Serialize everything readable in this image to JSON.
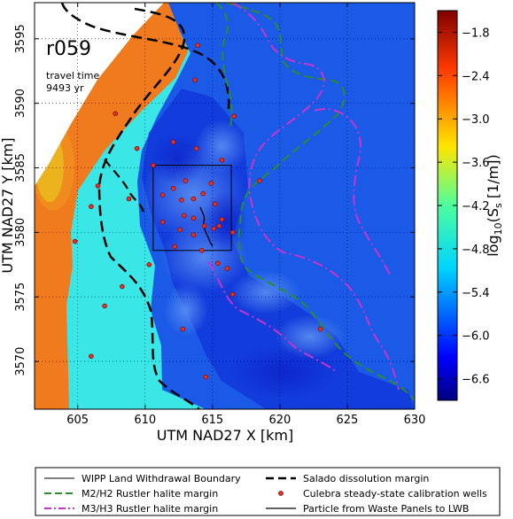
{
  "chart_data": {
    "type": "heatmap",
    "title": "",
    "xlabel": "UTM NAD27 X [km]",
    "ylabel": "UTM NAD27 Y [km]",
    "xlim": [
      601.8,
      630
    ],
    "ylim": [
      3566.3,
      3597.8
    ],
    "xticks": [
      605,
      610,
      615,
      620,
      625,
      630
    ],
    "yticks": [
      3570,
      3575,
      3580,
      3585,
      3590,
      3595
    ],
    "grid": true,
    "annotation": {
      "realization": "r059",
      "line1": "travel time",
      "line2": "9493 yr"
    },
    "colorbar": {
      "label_prefix": "log",
      "label_sub": "10",
      "label_main": "(S",
      "label_sub2": "s",
      "label_suffix": " [1/m])",
      "range": [
        -6.9,
        -1.5
      ],
      "ticks": [
        -1.8,
        -2.4,
        -3.0,
        -3.6,
        -4.2,
        -4.8,
        -5.4,
        -6.0,
        -6.6
      ],
      "tick_labels": [
        "−1.8",
        "−2.4",
        "−3.0",
        "−3.6",
        "−4.2",
        "−4.8",
        "−5.4",
        "−6.0",
        "−6.6"
      ]
    },
    "wipp_boundary": {
      "x": [
        610.6,
        616.4
      ],
      "y": [
        3578.6,
        3585.2
      ]
    },
    "wells": [
      [
        613.9,
        3594.5
      ],
      [
        613.7,
        3591.8
      ],
      [
        607.8,
        3589.2
      ],
      [
        616.6,
        3589.0
      ],
      [
        612.1,
        3587.0
      ],
      [
        609.4,
        3586.5
      ],
      [
        613.8,
        3586.5
      ],
      [
        610.6,
        3585.2
      ],
      [
        606.5,
        3583.6
      ],
      [
        613.0,
        3584.0
      ],
      [
        612.1,
        3583.4
      ],
      [
        614.3,
        3583.0
      ],
      [
        608.8,
        3582.6
      ],
      [
        611.3,
        3582.9
      ],
      [
        612.7,
        3582.5
      ],
      [
        613.6,
        3582.6
      ],
      [
        615.2,
        3582.2
      ],
      [
        606.0,
        3582.0
      ],
      [
        612.9,
        3581.3
      ],
      [
        613.6,
        3581.1
      ],
      [
        611.3,
        3580.8
      ],
      [
        612.6,
        3580.2
      ],
      [
        614.4,
        3580.5
      ],
      [
        615.1,
        3580.3
      ],
      [
        615.5,
        3580.5
      ],
      [
        613.6,
        3579.8
      ],
      [
        615.7,
        3581.0
      ],
      [
        616.5,
        3580.0
      ],
      [
        618.5,
        3584.0
      ],
      [
        614.2,
        3578.6
      ],
      [
        610.3,
        3577.5
      ],
      [
        612.2,
        3578.9
      ],
      [
        615.4,
        3577.6
      ],
      [
        616.1,
        3577.2
      ],
      [
        604.8,
        3579.3
      ],
      [
        608.3,
        3575.8
      ],
      [
        607.0,
        3574.3
      ],
      [
        616.5,
        3575.2
      ],
      [
        612.8,
        3572.5
      ],
      [
        606.0,
        3570.4
      ],
      [
        623.0,
        3572.5
      ],
      [
        614.5,
        3568.8
      ],
      [
        615.7,
        3585.6
      ],
      [
        614.9,
        3583.8
      ]
    ]
  },
  "legend": {
    "items": [
      "WIPP Land Withdrawal Boundary",
      "M2/H2 Rustler halite margin",
      "M3/H3 Rustler halite margin",
      "Salado dissolution margin",
      "Culebra steady-state calibration wells",
      "Particle from Waste Panels to LWB"
    ]
  },
  "colors": {
    "background_field": "#1a5ae6",
    "deep_blue": "#1237d8",
    "light_blue": "#3f7cf0",
    "cyan": "#3be6e6",
    "orange": "#f07a1e",
    "yellow": "#e6c81e",
    "m2h2": "#2e8b2e",
    "m3h3": "#cc33cc",
    "salado": "#000000",
    "well_fill": "#e63222",
    "well_edge": "#7a1010"
  }
}
